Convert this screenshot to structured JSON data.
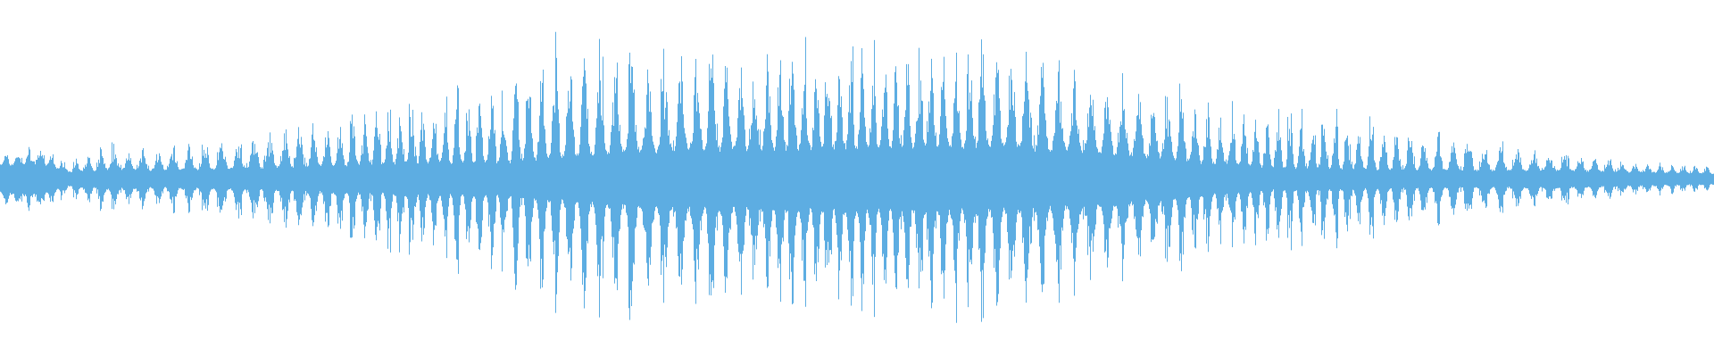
{
  "chart_data": {
    "type": "line",
    "kind": "audio-waveform",
    "title": "",
    "xlabel": "",
    "ylabel": "",
    "ylim": [
      -1,
      1
    ],
    "grid": false,
    "legend": "none",
    "color": "#5DADE2",
    "envelope": {
      "x": [
        0,
        0.022,
        0.04,
        0.064,
        0.09,
        0.128,
        0.19,
        0.242,
        0.293,
        0.312,
        0.351,
        0.395,
        0.446,
        0.485,
        0.542,
        0.577,
        0.619,
        0.67,
        0.702,
        0.74,
        0.797,
        0.86,
        0.907,
        0.957,
        1
      ],
      "peak": [
        0.15,
        0.2,
        0.1,
        0.22,
        0.18,
        0.25,
        0.37,
        0.5,
        0.58,
        0.85,
        0.8,
        0.77,
        0.8,
        0.8,
        0.85,
        0.85,
        0.74,
        0.6,
        0.5,
        0.45,
        0.37,
        0.25,
        0.16,
        0.1,
        0.08
      ],
      "core": [
        0.08,
        0.1,
        0.04,
        0.06,
        0.05,
        0.06,
        0.08,
        0.1,
        0.1,
        0.12,
        0.16,
        0.18,
        0.19,
        0.2,
        0.2,
        0.2,
        0.18,
        0.14,
        0.1,
        0.07,
        0.06,
        0.05,
        0.05,
        0.04,
        0.03
      ]
    }
  }
}
